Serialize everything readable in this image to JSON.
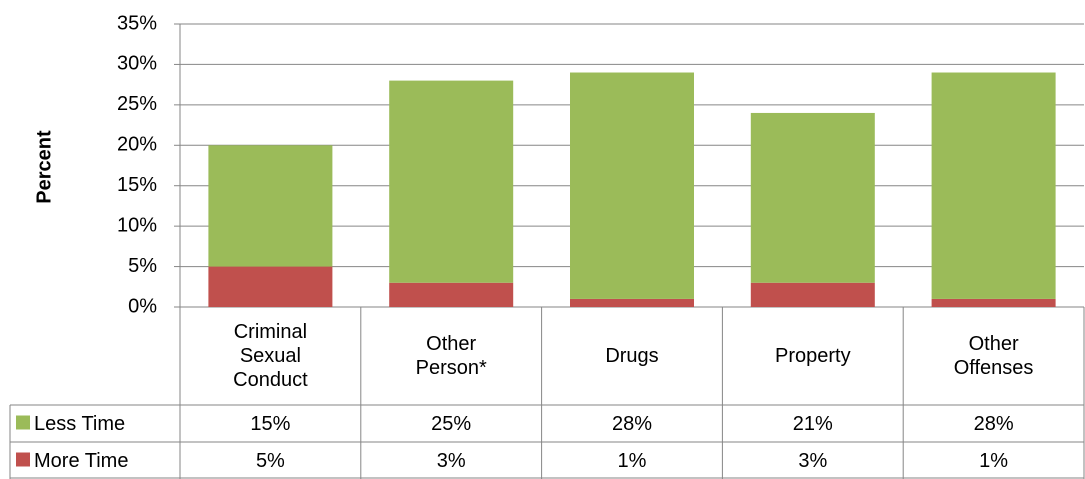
{
  "chart_data": {
    "type": "stacked-bar",
    "y_label": "Percent",
    "categories": [
      "Criminal Sexual Conduct",
      "Other Person*",
      "Drugs",
      "Property",
      "Other Offenses"
    ],
    "series": [
      {
        "name": "Less Time",
        "color": "#9bbb59",
        "values": [
          15,
          25,
          28,
          21,
          28
        ],
        "value_labels": [
          "15%",
          "25%",
          "28%",
          "21%",
          "28%"
        ]
      },
      {
        "name": "More Time",
        "color": "#c0504d",
        "values": [
          5,
          3,
          1,
          3,
          1
        ],
        "value_labels": [
          "5%",
          "3%",
          "1%",
          "3%",
          "1%"
        ]
      }
    ],
    "ylim": [
      0,
      35
    ],
    "yticks": [
      {
        "value": 0,
        "label": "0%"
      },
      {
        "value": 5,
        "label": "5%"
      },
      {
        "value": 10,
        "label": "10%"
      },
      {
        "value": 15,
        "label": "15%"
      },
      {
        "value": 20,
        "label": "20%"
      },
      {
        "value": 25,
        "label": "25%"
      },
      {
        "value": 30,
        "label": "30%"
      },
      {
        "value": 35,
        "label": "35%"
      }
    ],
    "grid": true
  }
}
